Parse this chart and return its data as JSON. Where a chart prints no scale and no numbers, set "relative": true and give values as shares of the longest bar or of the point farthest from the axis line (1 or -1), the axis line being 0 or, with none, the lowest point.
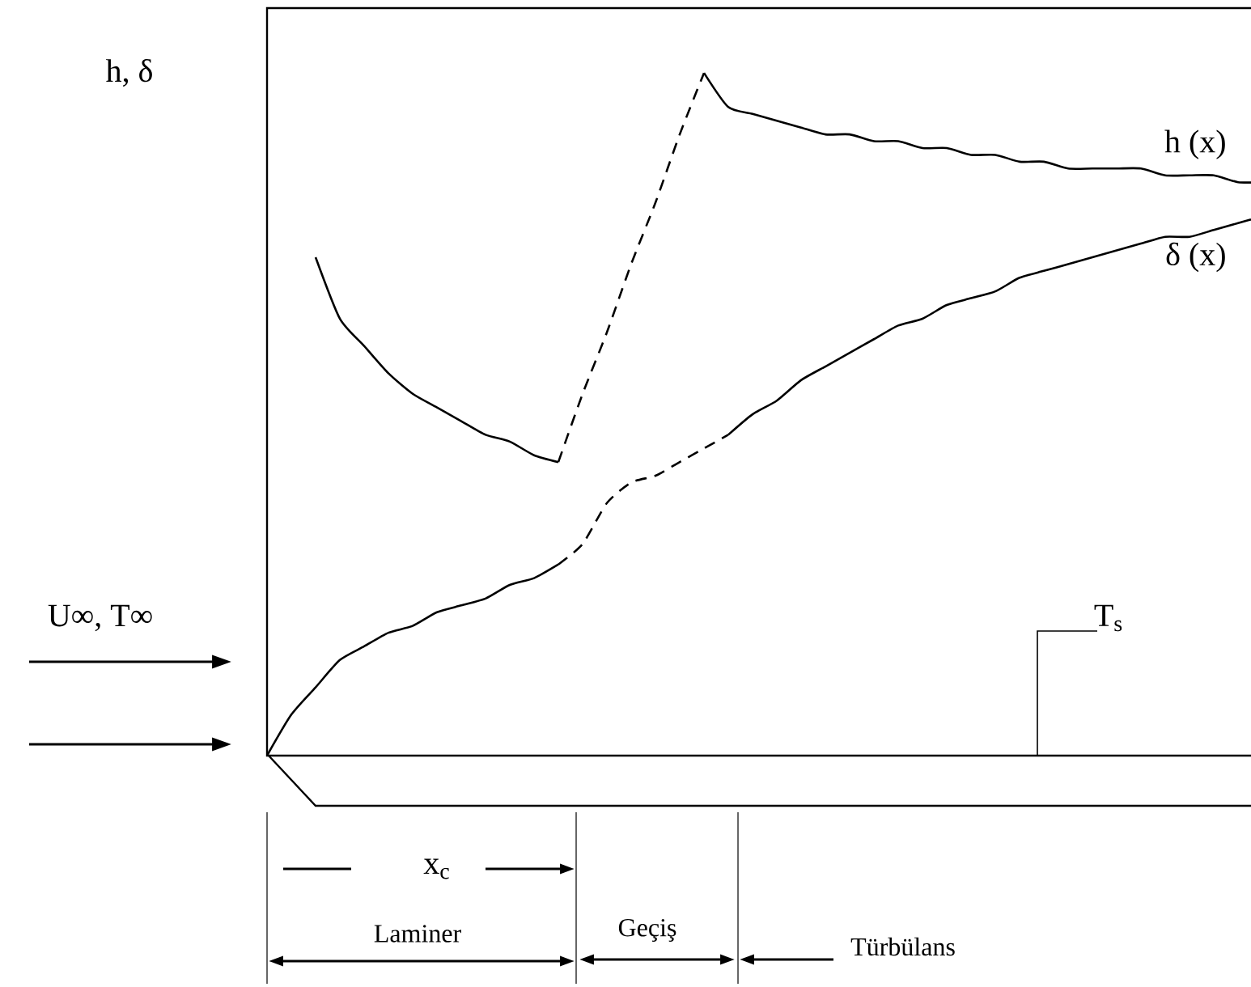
{
  "chart_data": {
    "type": "line",
    "relative": true,
    "ylabel": "h, δ",
    "categories": [
      null,
      null,
      null,
      null,
      null,
      null,
      null,
      null,
      null,
      null,
      null,
      null,
      null,
      null,
      null,
      null,
      null,
      null,
      null,
      null,
      null,
      null,
      null,
      null,
      null,
      null,
      null,
      null,
      null,
      null,
      null,
      null,
      null,
      null,
      null,
      null,
      null,
      null,
      null,
      null,
      null,
      null
    ],
    "series": [
      {
        "color": "#000000",
        "line_style": "solid",
        "values": [
          null,
          null,
          0.73,
          0.64,
          0.6,
          0.56,
          0.53,
          0.51,
          0.49,
          0.47,
          0.46,
          0.44,
          0.43,
          null,
          null,
          null,
          null,
          null,
          null,
          null,
          null,
          null,
          null,
          null,
          null,
          null,
          null,
          null,
          null,
          null,
          null,
          null,
          null,
          null,
          null,
          null,
          null,
          null,
          null,
          null,
          null,
          null
        ]
      },
      {
        "color": "#000000",
        "line_style": "dashed",
        "values": [
          null,
          null,
          null,
          null,
          null,
          null,
          null,
          null,
          null,
          null,
          null,
          null,
          0.43,
          0.53,
          0.62,
          0.72,
          0.81,
          0.91,
          1.0,
          null,
          null,
          null,
          null,
          null,
          null,
          null,
          null,
          null,
          null,
          null,
          null,
          null,
          null,
          null,
          null,
          null,
          null,
          null,
          null,
          null,
          null,
          null
        ]
      },
      {
        "name": "h (x)",
        "color": "#000000",
        "line_style": "solid",
        "values": [
          null,
          null,
          null,
          null,
          null,
          null,
          null,
          null,
          null,
          null,
          null,
          null,
          null,
          null,
          null,
          null,
          null,
          null,
          1.0,
          0.95,
          0.94,
          0.93,
          0.92,
          0.91,
          0.91,
          0.9,
          0.9,
          0.89,
          0.89,
          0.88,
          0.88,
          0.87,
          0.87,
          0.86,
          0.86,
          0.86,
          0.86,
          0.85,
          0.85,
          0.85,
          0.84,
          0.84
        ]
      },
      {
        "color": "#000000",
        "line_style": "solid",
        "values": [
          0,
          0.06,
          0.1,
          0.14,
          0.16,
          0.18,
          0.19,
          0.21,
          0.22,
          0.23,
          0.25,
          0.26,
          0.28,
          null,
          null,
          null,
          null,
          null,
          null,
          null,
          null,
          null,
          null,
          null,
          null,
          null,
          null,
          null,
          null,
          null,
          null,
          null,
          null,
          null,
          null,
          null,
          null,
          null,
          null,
          null,
          null,
          null
        ]
      },
      {
        "color": "#000000",
        "line_style": "dashed",
        "values": [
          null,
          null,
          null,
          null,
          null,
          null,
          null,
          null,
          null,
          null,
          null,
          null,
          0.28,
          0.31,
          0.37,
          0.4,
          0.41,
          0.43,
          0.45,
          0.47,
          null,
          null,
          null,
          null,
          null,
          null,
          null,
          null,
          null,
          null,
          null,
          null,
          null,
          null,
          null,
          null,
          null,
          null,
          null,
          null,
          null,
          null
        ]
      },
      {
        "name": "δ (x)",
        "color": "#000000",
        "line_style": "solid",
        "values": [
          null,
          null,
          null,
          null,
          null,
          null,
          null,
          null,
          null,
          null,
          null,
          null,
          null,
          null,
          null,
          null,
          null,
          null,
          null,
          0.47,
          0.5,
          0.52,
          0.55,
          0.57,
          0.59,
          0.61,
          0.63,
          0.64,
          0.66,
          0.67,
          0.68,
          0.7,
          0.71,
          0.72,
          0.73,
          0.74,
          0.75,
          0.76,
          0.76,
          0.77,
          0.78,
          0.79
        ]
      }
    ],
    "annotations": [
      "U∞, T∞",
      "T$_{s}$",
      "x$_{c}$",
      "Laminer",
      "Geçiş",
      "Türbülans"
    ]
  }
}
